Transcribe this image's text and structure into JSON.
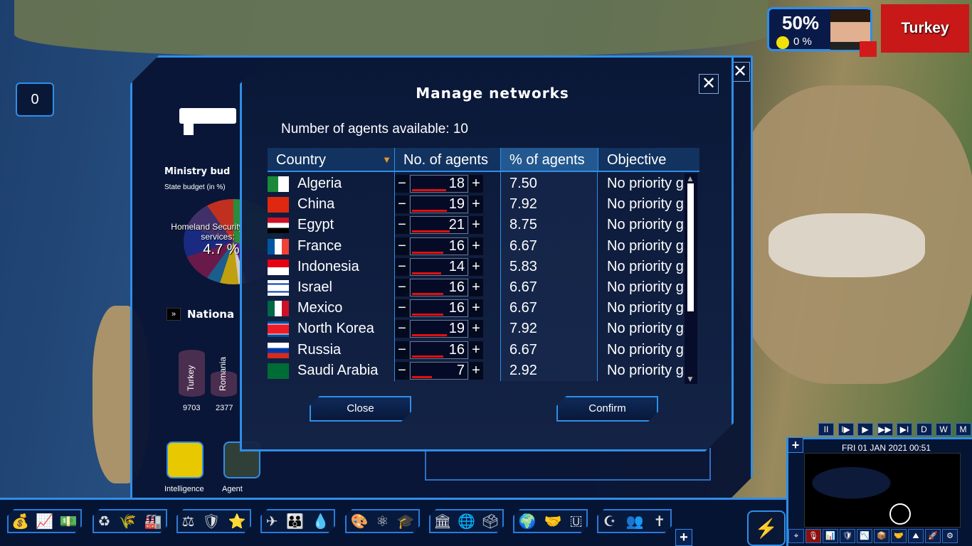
{
  "hud": {
    "approval": "50%",
    "happiness": "0 %",
    "country": "Turkey",
    "flag_color": "#d31a1a"
  },
  "notifications": {
    "count": "0"
  },
  "back_panel": {
    "ministry_title": "Ministry bud",
    "state_budget_label": "State budget (in %)",
    "pie_label_line1": "Homeland Security",
    "pie_label_line2": "services:",
    "pie_value": "4.7 %",
    "national_title": "Nationa",
    "cylinders": [
      {
        "country": "Turkey",
        "value": "9703"
      },
      {
        "country": "Romania",
        "value": "2377"
      }
    ],
    "portraits": [
      {
        "label": "Intelligence"
      },
      {
        "label": "Agent"
      }
    ]
  },
  "dialog": {
    "title": "Manage networks",
    "agents_available": "Number of agents available: 10",
    "columns": [
      "Country",
      "No. of agents",
      "% of agents",
      "Objective"
    ],
    "rows": [
      {
        "country": "Algeria",
        "agents": "18",
        "pct": "7.50",
        "objective": "No priority g»»"
      },
      {
        "country": "China",
        "agents": "19",
        "pct": "7.92",
        "objective": "No priority g»»"
      },
      {
        "country": "Egypt",
        "agents": "21",
        "pct": "8.75",
        "objective": "No priority g»»"
      },
      {
        "country": "France",
        "agents": "16",
        "pct": "6.67",
        "objective": "No priority g»»"
      },
      {
        "country": "Indonesia",
        "agents": "14",
        "pct": "5.83",
        "objective": "No priority g»»"
      },
      {
        "country": "Israel",
        "agents": "16",
        "pct": "6.67",
        "objective": "No priority g»»"
      },
      {
        "country": "Mexico",
        "agents": "16",
        "pct": "6.67",
        "objective": "No priority g»»"
      },
      {
        "country": "North Korea",
        "agents": "19",
        "pct": "7.92",
        "objective": "No priority g»»"
      },
      {
        "country": "Russia",
        "agents": "16",
        "pct": "6.67",
        "objective": "No priority g»»"
      },
      {
        "country": "Saudi Arabia",
        "agents": "7",
        "pct": "2.92",
        "objective": "No priority g»»"
      }
    ],
    "close_label": "Close",
    "confirm_label": "Confirm",
    "minus": "−",
    "plus": "+",
    "x": "✕"
  },
  "time": {
    "date": "FRI 01 JAN 2021",
    "clock": "00:51",
    "controls": [
      "II",
      "I▶",
      "▶",
      "▶▶",
      "▶I",
      "D",
      "W",
      "M"
    ]
  },
  "toolbar": {
    "groups": [
      [
        "💰",
        "📈",
        "💵"
      ],
      [
        "♻",
        "🌾",
        "🏭"
      ],
      [
        "⚖",
        "🛡",
        "⭐"
      ],
      [
        "✈",
        "👪",
        "💧"
      ],
      [
        "🎨",
        "⚛",
        "🎓"
      ],
      [
        "🏛",
        "🌐",
        "🗳"
      ],
      [
        "🌍",
        "🤝",
        "🇺"
      ],
      [
        "☪",
        "👥",
        "✝"
      ]
    ],
    "plus": "+"
  },
  "minimap_icons": [
    "⌖",
    "🎙",
    "📊",
    "🛡",
    "📉",
    "📦",
    "🤝",
    "⛰",
    "🚀",
    "⚙"
  ]
}
